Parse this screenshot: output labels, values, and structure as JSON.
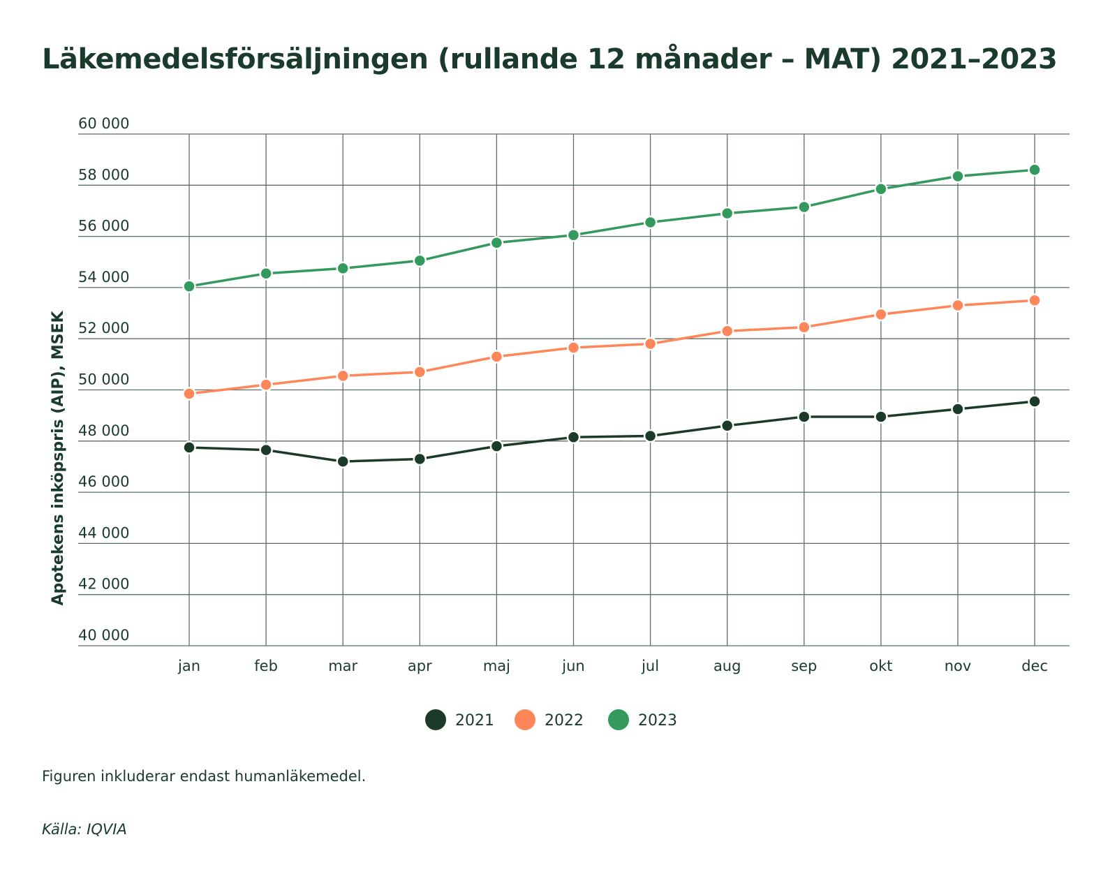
{
  "title": "Läkemedelsförsäljningen (rullande 12 månader – MAT) 2021–2023",
  "footnote": "Figuren inkluderar endast humanläkemedel.",
  "source": "Källa: IQVIA",
  "colors": {
    "2021": "#1b3a2a",
    "2022": "#ff8659",
    "2023": "#33995c",
    "grid": "#5e6e66",
    "text": "#1a3a2c"
  },
  "chart_data": {
    "type": "line",
    "title": "Läkemedelsförsäljningen (rullande 12 månader – MAT) 2021–2023",
    "xlabel": "",
    "ylabel": "Apotekens inköpspris (AIP), MSEK",
    "ylim": [
      40000,
      60000
    ],
    "yticks": [
      40000,
      42000,
      44000,
      46000,
      48000,
      50000,
      52000,
      54000,
      56000,
      58000,
      60000
    ],
    "ytick_labels": [
      "40 000",
      "42 000",
      "44 000",
      "46 000",
      "48 000",
      "50 000",
      "52 000",
      "54 000",
      "56 000",
      "58 000",
      "60 000"
    ],
    "categories": [
      "jan",
      "feb",
      "mar",
      "apr",
      "maj",
      "jun",
      "jul",
      "aug",
      "sep",
      "okt",
      "nov",
      "dec"
    ],
    "grid": true,
    "legend_position": "bottom-center",
    "series": [
      {
        "name": "2021",
        "color": "#1b3a2a",
        "values": [
          47750,
          47650,
          47200,
          47300,
          47800,
          48150,
          48200,
          48600,
          48950,
          48950,
          49250,
          49550
        ]
      },
      {
        "name": "2022",
        "color": "#ff8659",
        "values": [
          49850,
          50200,
          50550,
          50700,
          51300,
          51650,
          51800,
          52300,
          52450,
          52950,
          53300,
          53500
        ]
      },
      {
        "name": "2023",
        "color": "#33995c",
        "values": [
          54050,
          54550,
          54750,
          55050,
          55750,
          56050,
          56550,
          56900,
          57150,
          57850,
          58350,
          58600
        ]
      }
    ]
  }
}
